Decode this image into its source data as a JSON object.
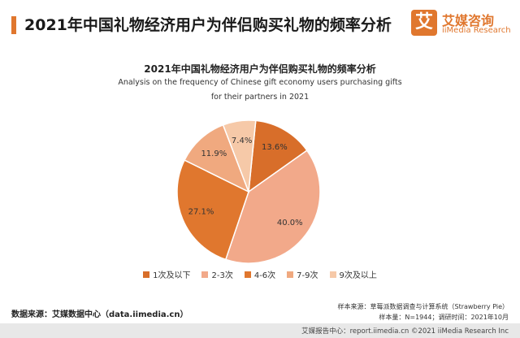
{
  "header": {
    "page_title": "2021年中国礼物经济用户为伴侣购买礼物的频率分析",
    "logo_mark": "艾",
    "logo_cn": "艾媒咨询",
    "logo_en": "iiMedia Research"
  },
  "chart_data": {
    "type": "pie",
    "title": "2021年中国礼物经济用户为伴侣购买礼物的频率分析",
    "subtitle_line1": "Analysis on the frequency of Chinese gift economy users purchasing gifts",
    "subtitle_line2": "for their partners in 2021",
    "categories": [
      "1次及以下",
      "2-3次",
      "4-6次",
      "7-9次",
      "9次及以上"
    ],
    "values": [
      13.6,
      40.0,
      27.1,
      11.9,
      7.4
    ],
    "value_labels": [
      "13.6%",
      "40.0%",
      "27.1%",
      "11.9%",
      "7.4%"
    ],
    "colors": [
      "#d86e2a",
      "#f2a98a",
      "#e0772e",
      "#f0a97f",
      "#f6c9a8"
    ],
    "legend_position": "bottom"
  },
  "notes": {
    "sample_source": "样本来源：草莓派数据调查与计算系统（Strawberry Pie）",
    "sample_size": "样本量：N=1944；调研时间：2021年10月",
    "data_source": "数据来源：艾媒数据中心（data.iimedia.cn）"
  },
  "footer": {
    "text": "艾媒报告中心：report.iimedia.cn  ©2021  iiMedia Research  Inc"
  }
}
